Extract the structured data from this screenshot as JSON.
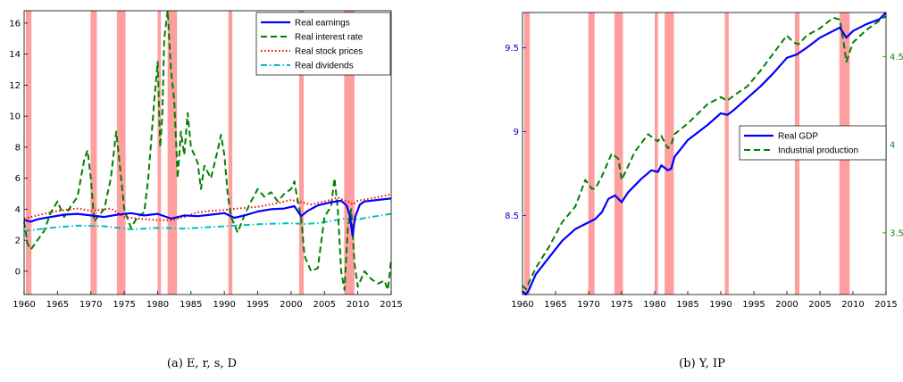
{
  "chart_data": [
    {
      "type": "line",
      "caption": "(a) E, r, s, D",
      "xlim": [
        1960,
        2015
      ],
      "ylim": [
        -1.5,
        16.8
      ],
      "xticks": [
        1960,
        1965,
        1970,
        1975,
        1980,
        1985,
        1990,
        1995,
        2000,
        2005,
        2010,
        2015
      ],
      "yticks": [
        0,
        2,
        4,
        6,
        8,
        10,
        12,
        14,
        16
      ],
      "recessions": [
        [
          1960.25,
          1961.1
        ],
        [
          1969.95,
          1970.9
        ],
        [
          1973.9,
          1975.2
        ],
        [
          1980.0,
          1980.5
        ],
        [
          1981.5,
          1982.9
        ],
        [
          1990.6,
          1991.2
        ],
        [
          2001.2,
          2001.9
        ],
        [
          2007.95,
          2009.5
        ]
      ],
      "legend_position": "top-right",
      "series": [
        {
          "name": "Real earnings",
          "color": "#0000ff",
          "style": "solid",
          "x": [
            1960,
            1961,
            1962,
            1964,
            1966,
            1968,
            1970,
            1972,
            1974,
            1976,
            1978,
            1980,
            1982,
            1984,
            1986,
            1988,
            1990,
            1991.5,
            1993,
            1995,
            1997,
            1999,
            2000.5,
            2001.5,
            2002.5,
            2004,
            2006,
            2007.5,
            2008.3,
            2008.8,
            2009.2,
            2009.6,
            2010.3,
            2011,
            2013,
            2015
          ],
          "y": [
            3.3,
            3.2,
            3.35,
            3.5,
            3.65,
            3.7,
            3.6,
            3.5,
            3.65,
            3.75,
            3.6,
            3.7,
            3.4,
            3.6,
            3.55,
            3.65,
            3.75,
            3.45,
            3.6,
            3.85,
            4.0,
            4.05,
            4.2,
            3.55,
            3.9,
            4.25,
            4.45,
            4.55,
            4.25,
            3.6,
            2.3,
            3.5,
            4.3,
            4.5,
            4.6,
            4.7
          ]
        },
        {
          "name": "Real interest rate",
          "color": "#008000",
          "style": "dashed",
          "x": [
            1960,
            1960.5,
            1961,
            1962,
            1963,
            1964,
            1965,
            1966,
            1967,
            1968,
            1969,
            1969.5,
            1970,
            1970.5,
            1971,
            1972,
            1973,
            1973.8,
            1974.3,
            1975,
            1976,
            1977,
            1978,
            1978.6,
            1979,
            1979.5,
            1980,
            1980.4,
            1980.7,
            1981,
            1981.5,
            1982,
            1982.5,
            1983,
            1983.5,
            1984,
            1984.5,
            1985,
            1986,
            1986.5,
            1987,
            1988,
            1989,
            1989.5,
            1990,
            1990.5,
            1991,
            1992,
            1993,
            1994,
            1995,
            1996,
            1997,
            1998,
            1999,
            2000,
            2000.5,
            2001,
            2001.5,
            2002,
            2003,
            2004,
            2005,
            2006,
            2006.5,
            2007,
            2007.5,
            2008,
            2008.5,
            2009,
            2009.5,
            2010,
            2011,
            2012,
            2013,
            2014,
            2014.5,
            2015
          ],
          "y": [
            3.2,
            1.8,
            1.4,
            2.0,
            2.6,
            3.8,
            4.5,
            3.5,
            4.2,
            4.8,
            7.2,
            7.8,
            6.0,
            3.2,
            3.5,
            4.0,
            6.0,
            9.0,
            7.0,
            4.0,
            2.8,
            3.5,
            3.8,
            6.0,
            8.2,
            11.0,
            13.5,
            8.0,
            10.0,
            15.0,
            16.8,
            13.0,
            11.0,
            6.0,
            9.0,
            7.5,
            10.2,
            8.0,
            7.0,
            5.3,
            6.8,
            6.0,
            7.8,
            8.8,
            7.5,
            5.0,
            3.5,
            2.5,
            3.6,
            4.5,
            5.3,
            4.8,
            5.1,
            4.5,
            5.0,
            5.3,
            5.8,
            4.5,
            3.5,
            1.0,
            0.0,
            0.2,
            3.5,
            4.2,
            6.0,
            4.0,
            0.0,
            -1.2,
            2.8,
            4.0,
            0.5,
            -1.0,
            0.0,
            -0.5,
            -0.8,
            -0.6,
            -1.2,
            0.8
          ]
        },
        {
          "name": "Real stock prices",
          "color": "#ff0000",
          "style": "dotted",
          "x": [
            1960,
            1962,
            1964,
            1966,
            1968,
            1970,
            1972,
            1973,
            1975,
            1977,
            1980,
            1982,
            1984,
            1986,
            1988,
            1990,
            1992,
            1995,
            1998,
            2000,
            2002,
            2003,
            2005,
            2007,
            2008.5,
            2009.3,
            2010,
            2012,
            2015
          ],
          "y": [
            3.4,
            3.6,
            3.8,
            3.95,
            4.05,
            3.9,
            4.0,
            4.05,
            3.5,
            3.4,
            3.3,
            3.3,
            3.5,
            3.8,
            3.9,
            3.95,
            4.05,
            4.15,
            4.4,
            4.6,
            4.4,
            4.3,
            4.5,
            4.75,
            4.5,
            4.3,
            4.55,
            4.7,
            4.95
          ]
        },
        {
          "name": "Real dividends",
          "color": "#00c0c0",
          "style": "dashdot",
          "x": [
            1960,
            1964,
            1968,
            1972,
            1976,
            1980,
            1984,
            1988,
            1992,
            1996,
            2000,
            2002,
            2004,
            2006,
            2008,
            2010,
            2012,
            2015
          ],
          "y": [
            2.6,
            2.8,
            2.95,
            2.9,
            2.7,
            2.8,
            2.75,
            2.85,
            2.95,
            3.05,
            3.1,
            3.05,
            3.1,
            3.25,
            3.4,
            3.35,
            3.5,
            3.7
          ]
        }
      ]
    },
    {
      "type": "line",
      "caption": "(b) Y, IP",
      "xlim": [
        1960,
        2015
      ],
      "ylim_left": [
        8.03,
        9.71
      ],
      "ylim_right": [
        3.15,
        4.75
      ],
      "xticks": [
        1960,
        1965,
        1970,
        1975,
        1980,
        1985,
        1990,
        1995,
        2000,
        2005,
        2010,
        2015
      ],
      "yticks_left": [
        8.5,
        9,
        9.5
      ],
      "yticks_right": [
        3.5,
        4,
        4.5
      ],
      "recessions": [
        [
          1960.25,
          1961.1
        ],
        [
          1969.95,
          1970.9
        ],
        [
          1973.9,
          1975.2
        ],
        [
          1980.0,
          1980.5
        ],
        [
          1981.5,
          1982.9
        ],
        [
          1990.6,
          1991.2
        ],
        [
          2001.2,
          2001.9
        ],
        [
          2007.95,
          2009.5
        ]
      ],
      "legend_position": "center-right",
      "series": [
        {
          "name": "Real GDP",
          "axis": "left",
          "color": "#0000ff",
          "style": "solid",
          "x": [
            1960,
            1960.5,
            1961,
            1962,
            1964,
            1966,
            1968,
            1970,
            1971,
            1972,
            1973,
            1974,
            1975,
            1976,
            1978,
            1979.5,
            1980.5,
            1981,
            1982,
            1982.5,
            1983,
            1985,
            1988,
            1990,
            1991,
            1992,
            1994,
            1996,
            1998,
            2000,
            2001.5,
            2003,
            2005,
            2007,
            2008,
            2009,
            2010,
            2012,
            2014,
            2015
          ],
          "y": [
            8.05,
            8.03,
            8.06,
            8.15,
            8.25,
            8.35,
            8.42,
            8.46,
            8.48,
            8.52,
            8.6,
            8.62,
            8.58,
            8.64,
            8.72,
            8.77,
            8.76,
            8.8,
            8.77,
            8.78,
            8.85,
            8.95,
            9.04,
            9.11,
            9.1,
            9.13,
            9.2,
            9.27,
            9.35,
            9.44,
            9.46,
            9.5,
            9.56,
            9.6,
            9.62,
            9.56,
            9.6,
            9.64,
            9.67,
            9.71
          ]
        },
        {
          "name": "Industrial production",
          "axis": "right",
          "color": "#008000",
          "style": "dashed",
          "x": [
            1960,
            1960.5,
            1961,
            1962,
            1964,
            1966,
            1968,
            1969.5,
            1970.5,
            1971,
            1972,
            1973.5,
            1974.5,
            1975,
            1976,
            1977,
            1978,
            1979,
            1980,
            1980.5,
            1981,
            1982,
            1982.5,
            1983,
            1985,
            1988,
            1990,
            1991,
            1992,
            1994,
            1996,
            1998,
            2000,
            2001,
            2001.8,
            2003,
            2005,
            2007,
            2008,
            2008.6,
            2009,
            2010,
            2012,
            2015
          ],
          "y": [
            3.2,
            3.18,
            3.22,
            3.3,
            3.42,
            3.56,
            3.65,
            3.8,
            3.75,
            3.75,
            3.82,
            3.95,
            3.92,
            3.8,
            3.88,
            3.96,
            4.01,
            4.06,
            4.03,
            4.02,
            4.05,
            3.98,
            4.0,
            4.06,
            4.12,
            4.23,
            4.27,
            4.25,
            4.28,
            4.33,
            4.42,
            4.52,
            4.62,
            4.58,
            4.57,
            4.62,
            4.66,
            4.72,
            4.71,
            4.58,
            4.47,
            4.58,
            4.65,
            4.73
          ]
        }
      ]
    }
  ]
}
